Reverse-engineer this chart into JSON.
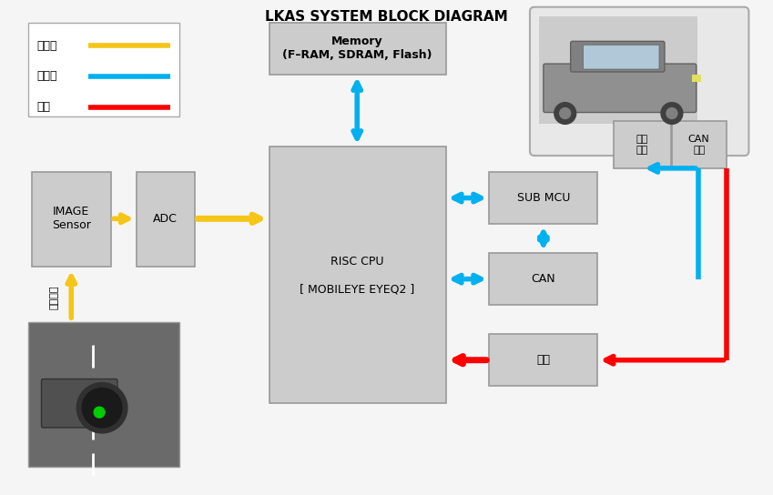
{
  "title": "LKAS SYSTEM BLOCK DIAGRAM",
  "bg_color": "#f5f5f5",
  "box_facecolor": "#cccccc",
  "box_edgecolor": "#999999",
  "yellow": "#f5c518",
  "blue": "#00b0f0",
  "red": "#ff0000",
  "legend_items": [
    {
      "label": "단방향",
      "color": "#f5c518"
    },
    {
      "label": "양방향",
      "color": "#00b0f0"
    },
    {
      "label": "전원",
      "color": "#ff0000"
    }
  ]
}
